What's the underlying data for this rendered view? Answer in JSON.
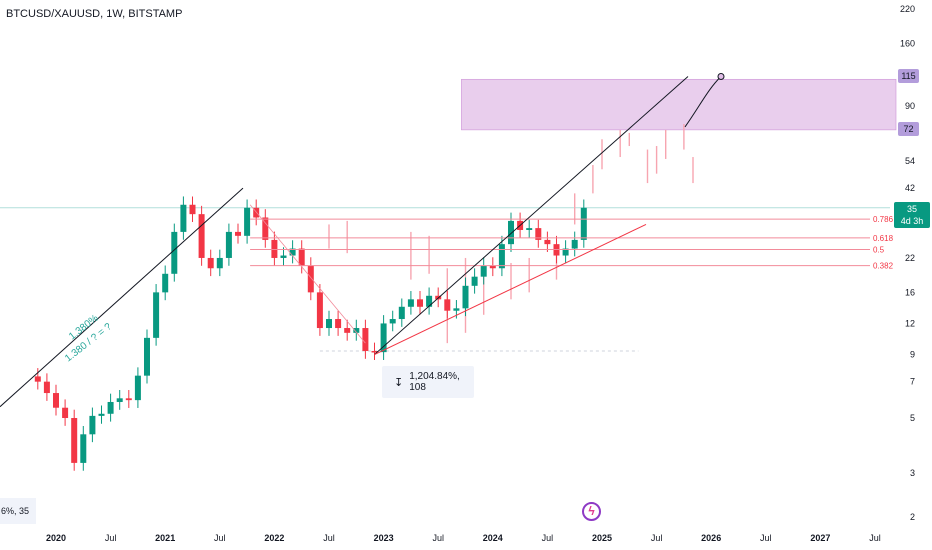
{
  "chart_data": {
    "type": "candlestick",
    "title": "BTCUSD/XAUUSD, 1W, BITSTAMP",
    "yscale": "log",
    "ylim": [
      1.9,
      240
    ],
    "y_ticks": [
      "220",
      "160",
      "115",
      "90",
      "72",
      "54",
      "42",
      "35",
      "22",
      "16",
      "12",
      "9",
      "7",
      "5",
      "3",
      "2"
    ],
    "x_ticks": [
      "2020",
      "Jul",
      "2021",
      "Jul",
      "2022",
      "Jul",
      "2023",
      "Jul",
      "2024",
      "Jul",
      "2025",
      "Jul",
      "2026",
      "Jul",
      "2027",
      "Jul"
    ],
    "last_price": "35",
    "countdown": "4d 3h",
    "fib_levels": [
      {
        "label": "0.786",
        "value": 31.5
      },
      {
        "label": "0.618",
        "value": 26.5
      },
      {
        "label": "0.5",
        "value": 23.8
      },
      {
        "label": "0.382",
        "value": 20.5
      }
    ],
    "target_zone": {
      "low": 72,
      "high": 115,
      "label_low": "72",
      "label_high": "115"
    },
    "annotations": {
      "measure": "1,204.84%, 108",
      "ratio_text_1": "1.380%",
      "ratio_text_2": "1.380 / ? = ?",
      "bottom_left": "6%, 35"
    },
    "colors": {
      "up": "#089981",
      "down": "#f23645",
      "ghost": "#f7a5b0",
      "zone": "#e1bee7",
      "fib": "#f28b9a",
      "trend": "#131722",
      "support": "#f23645"
    },
    "series": [
      {
        "name": "close",
        "points": [
          [
            "2019-11",
            7.0
          ],
          [
            "2019-12",
            6.3
          ],
          [
            "2020-01",
            5.5
          ],
          [
            "2020-02",
            5.0
          ],
          [
            "2020-03",
            3.3
          ],
          [
            "2020-04",
            4.3
          ],
          [
            "2020-05",
            5.1
          ],
          [
            "2020-06",
            5.2
          ],
          [
            "2020-07",
            5.8
          ],
          [
            "2020-08",
            6.0
          ],
          [
            "2020-09",
            5.9
          ],
          [
            "2020-10",
            7.4
          ],
          [
            "2020-11",
            10.5
          ],
          [
            "2020-12",
            16.0
          ],
          [
            "2021-01",
            19.0
          ],
          [
            "2021-02",
            28.0
          ],
          [
            "2021-03",
            36.0
          ],
          [
            "2021-04",
            33.0
          ],
          [
            "2021-05",
            22.0
          ],
          [
            "2021-06",
            20.0
          ],
          [
            "2021-07",
            22.0
          ],
          [
            "2021-08",
            28.0
          ],
          [
            "2021-09",
            27.0
          ],
          [
            "2021-10",
            35.0
          ],
          [
            "2021-11",
            32.0
          ],
          [
            "2021-12",
            26.0
          ],
          [
            "2022-01",
            22.0
          ],
          [
            "2022-02",
            22.5
          ],
          [
            "2022-03",
            24.0
          ],
          [
            "2022-04",
            20.5
          ],
          [
            "2022-05",
            16.0
          ],
          [
            "2022-06",
            11.5
          ],
          [
            "2022-07",
            12.5
          ],
          [
            "2022-08",
            11.5
          ],
          [
            "2022-09",
            11.0
          ],
          [
            "2022-10",
            11.5
          ],
          [
            "2022-11",
            9.3
          ],
          [
            "2022-12",
            9.2
          ],
          [
            "2023-01",
            12.0
          ],
          [
            "2023-02",
            12.5
          ],
          [
            "2023-03",
            14.0
          ],
          [
            "2023-04",
            15.0
          ],
          [
            "2023-05",
            14.0
          ],
          [
            "2023-06",
            15.5
          ],
          [
            "2023-07",
            15.0
          ],
          [
            "2023-08",
            13.5
          ],
          [
            "2023-09",
            13.8
          ],
          [
            "2023-10",
            17.0
          ],
          [
            "2023-11",
            18.5
          ],
          [
            "2023-12",
            20.5
          ],
          [
            "2024-01",
            20.0
          ],
          [
            "2024-02",
            25.0
          ],
          [
            "2024-03",
            31.0
          ],
          [
            "2024-04",
            28.5
          ],
          [
            "2024-05",
            29.0
          ],
          [
            "2024-06",
            26.0
          ],
          [
            "2024-07",
            25.0
          ],
          [
            "2024-08",
            22.5
          ],
          [
            "2024-09",
            24.0
          ],
          [
            "2024-10",
            26.0
          ],
          [
            "2024-11",
            35.0
          ]
        ]
      }
    ]
  }
}
